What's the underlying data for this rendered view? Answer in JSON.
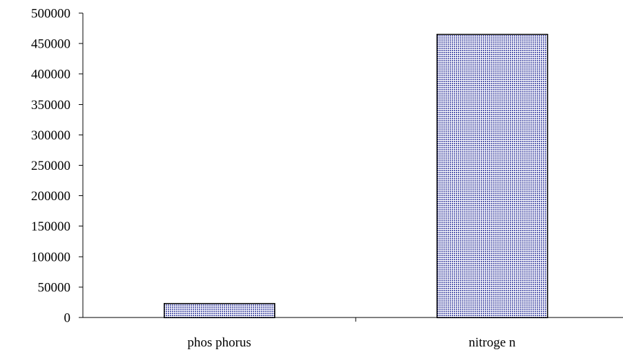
{
  "chart_data": {
    "type": "bar",
    "categories": [
      "phos phorus",
      "nitroge n"
    ],
    "values": [
      23000,
      465000
    ],
    "title": "",
    "xlabel": "",
    "ylabel": "",
    "ylim": [
      0,
      500000
    ],
    "y_ticks": [
      0,
      50000,
      100000,
      150000,
      200000,
      250000,
      300000,
      350000,
      400000,
      450000,
      500000
    ],
    "grid": false,
    "legend": "none",
    "bar_color": "#5a5fb0",
    "bar_pattern": "dotted-grid",
    "series": [
      {
        "values": [
          23000,
          465000
        ]
      }
    ]
  }
}
